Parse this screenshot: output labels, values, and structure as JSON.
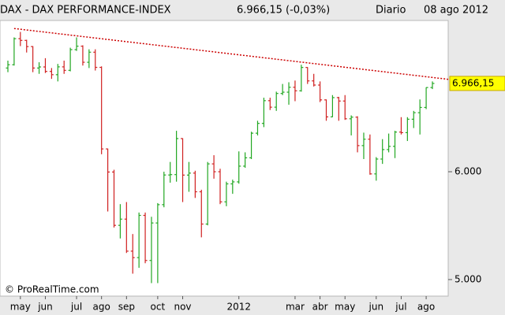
{
  "chart_data": {
    "type": "ohlc",
    "title": "DAX - DAX PERFORMANCE-INDEX",
    "subtitle": "6.966,15 (-0,03%)",
    "period": "Diario",
    "date": "08 ago 2012",
    "copyright": "© ProRealTime.com",
    "log_scale": true,
    "up_color": "#22a722",
    "down_color": "#d02020",
    "categories": [
      null,
      null,
      "may",
      null,
      null,
      null,
      "jun",
      null,
      null,
      null,
      null,
      "jul",
      null,
      null,
      null,
      "ago",
      null,
      null,
      null,
      "sep",
      null,
      null,
      null,
      null,
      "oct",
      null,
      null,
      null,
      "nov",
      null,
      null,
      null,
      null,
      null,
      null,
      null,
      null,
      "2012",
      null,
      null,
      null,
      null,
      null,
      null,
      null,
      null,
      "mar",
      null,
      null,
      null,
      "abr",
      null,
      null,
      null,
      "may",
      null,
      null,
      null,
      null,
      "jun",
      null,
      null,
      null,
      "jul",
      null,
      null,
      null,
      "ago",
      null
    ],
    "open": [
      7150,
      7190,
      7514,
      7492,
      7414,
      7150,
      7163,
      7109,
      7070,
      7164,
      7122,
      7376,
      7419,
      7220,
      7344,
      7158,
      6236,
      5997,
      5480,
      5538,
      5246,
      5189,
      5573,
      5164,
      5502,
      5675,
      5967,
      5971,
      6346,
      5966,
      5986,
      5800,
      5492,
      6080,
      6000,
      5702,
      5878,
      5898,
      6057,
      6143,
      6404,
      6511,
      6766,
      6692,
      6849,
      6864,
      6921,
      6880,
      7157,
      6996,
      6947,
      6775,
      6583,
      6801,
      6762,
      6562,
      6580,
      6271,
      6339,
      5978,
      6130,
      6229,
      6263,
      6416,
      6410,
      6557,
      6630,
      6689,
      6918
    ],
    "high": [
      7240,
      7530,
      7600,
      7500,
      7420,
      7220,
      7270,
      7150,
      7200,
      7240,
      7400,
      7530,
      7430,
      7380,
      7380,
      7170,
      6240,
      6020,
      5680,
      5700,
      5400,
      5600,
      5600,
      5560,
      5690,
      6000,
      6100,
      6430,
      6350,
      6100,
      6010,
      5820,
      6100,
      6170,
      6030,
      5900,
      5920,
      6210,
      6200,
      6420,
      6540,
      6800,
      6800,
      6870,
      6960,
      6980,
      7000,
      7190,
      7160,
      7080,
      6990,
      6780,
      6830,
      6810,
      6830,
      6600,
      6590,
      6410,
      6390,
      6150,
      6340,
      6400,
      6430,
      6580,
      6580,
      6650,
      6780,
      6920,
      6990
    ],
    "low": [
      7100,
      7180,
      7420,
      7340,
      7100,
      7080,
      7090,
      7020,
      6990,
      7080,
      7110,
      7360,
      7180,
      7150,
      7120,
      6180,
      5610,
      5460,
      5360,
      5230,
      5050,
      5100,
      5140,
      4970,
      4970,
      5650,
      5890,
      5900,
      5700,
      5800,
      5740,
      5370,
      5480,
      5930,
      5680,
      5660,
      5780,
      5880,
      6040,
      6130,
      6380,
      6470,
      6660,
      6650,
      6830,
      6720,
      6760,
      6870,
      6960,
      6930,
      6750,
      6540,
      6580,
      6540,
      6550,
      6380,
      6200,
      6130,
      5970,
      5910,
      6080,
      6200,
      6140,
      6390,
      6320,
      6460,
      6390,
      6670,
      6900
    ],
    "close": [
      7190,
      7514,
      7492,
      7414,
      7150,
      7163,
      7109,
      7070,
      7164,
      7122,
      7376,
      7419,
      7220,
      7344,
      7158,
      6236,
      5997,
      5480,
      5538,
      5246,
      5189,
      5573,
      5164,
      5502,
      5675,
      5967,
      5971,
      6346,
      5966,
      5986,
      5800,
      5492,
      6080,
      6000,
      5702,
      5878,
      5898,
      6057,
      6143,
      6404,
      6511,
      6766,
      6692,
      6849,
      6864,
      6921,
      6880,
      7157,
      6996,
      6947,
      6775,
      6583,
      6801,
      6762,
      6562,
      6580,
      6271,
      6339,
      5978,
      6130,
      6229,
      6263,
      6416,
      6410,
      6557,
      6630,
      6689,
      6918,
      6966
    ],
    "trendline": {
      "values": [
        7644,
        7015
      ],
      "color": "#cc0000"
    },
    "last_price": {
      "value": 6966.15,
      "label": "6.966,15"
    },
    "ylim": [
      4888,
      7728
    ],
    "yticks": [
      {
        "value": 5000,
        "label": "5.000"
      },
      {
        "value": 6000,
        "label": "6.000"
      }
    ]
  }
}
